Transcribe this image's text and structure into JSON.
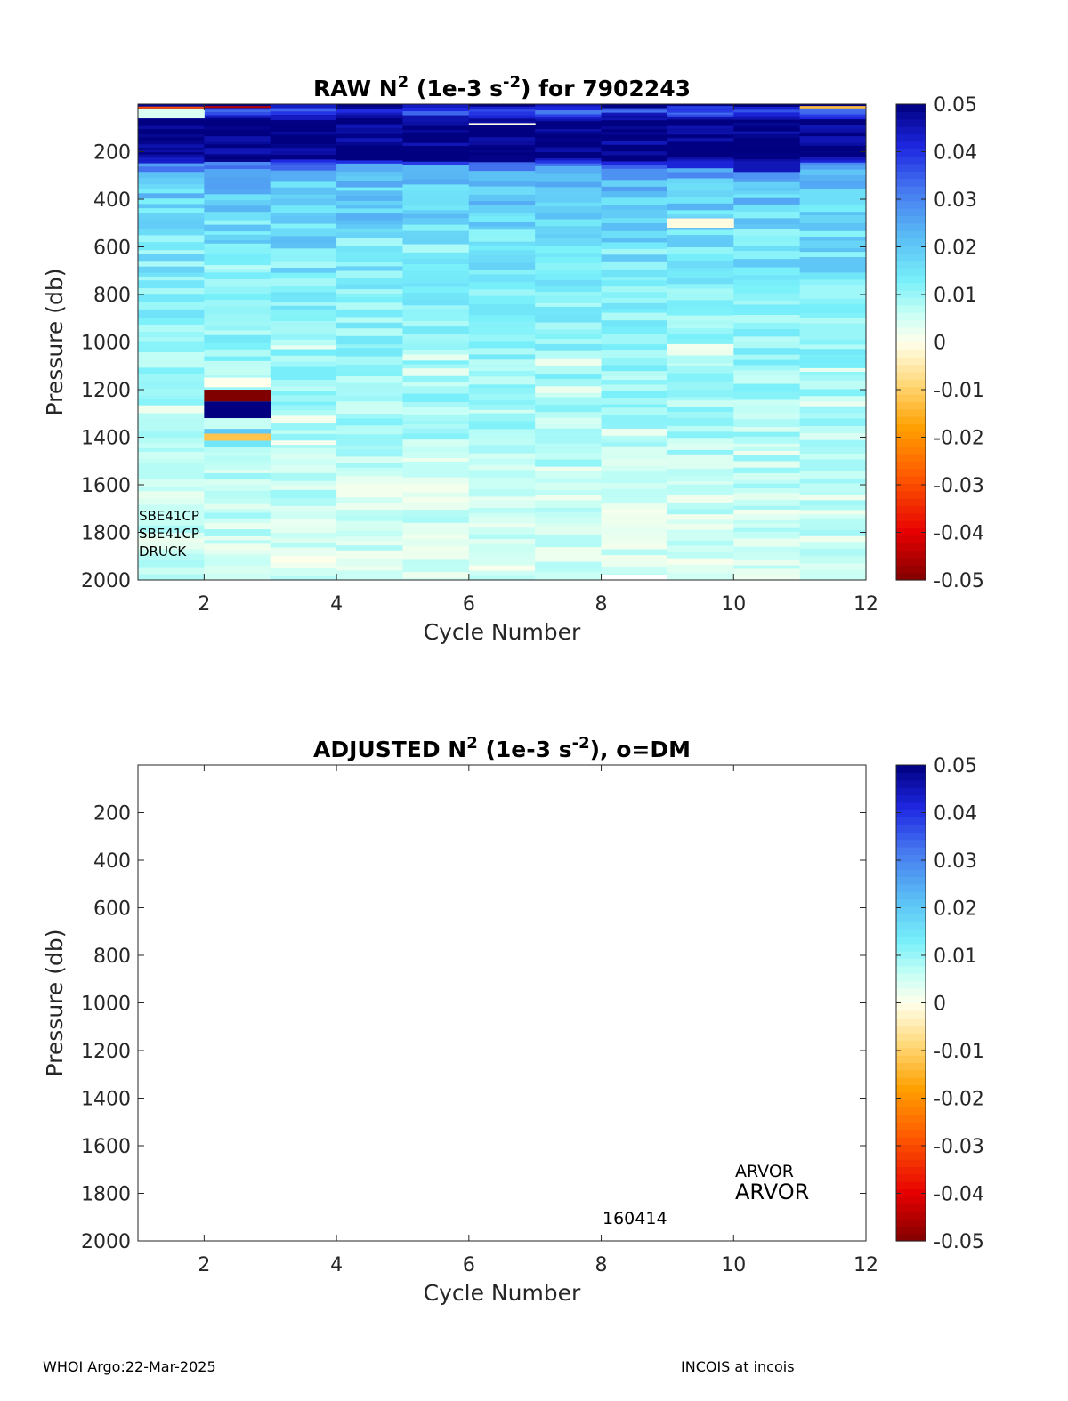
{
  "chart_data": [
    {
      "type": "heatmap",
      "title_main": "RAW N",
      "title_sup1": "2",
      "title_mid": " (1e-3 s",
      "title_sup2": "-2",
      "title_end": ") for 7902243",
      "xlabel": "Cycle Number",
      "ylabel": "Pressure (db)",
      "xlim": [
        1,
        12
      ],
      "ylim": [
        0,
        2000
      ],
      "x_ticks": [
        2,
        4,
        6,
        8,
        10,
        12
      ],
      "x_tick_labels": [
        "2",
        "4",
        "6",
        "8",
        "10",
        "12"
      ],
      "y_ticks": [
        200,
        400,
        600,
        800,
        1000,
        1200,
        1400,
        1600,
        1800,
        2000
      ],
      "y_tick_labels": [
        "200",
        "400",
        "600",
        "800",
        "1000",
        "1200",
        "1400",
        "1600",
        "1800",
        "2000"
      ],
      "colorbar": {
        "min": -0.05,
        "max": 0.05,
        "ticks": [
          0.05,
          0.04,
          0.03,
          0.02,
          0.01,
          0,
          -0.01,
          -0.02,
          -0.03,
          -0.04,
          -0.05
        ],
        "tick_labels": [
          "0.05",
          "0.04",
          "0.03",
          "0.02",
          "0.01",
          "0",
          "-0.01",
          "-0.02",
          "-0.03",
          "-0.04",
          "-0.05"
        ]
      },
      "cycles": [
        1,
        2,
        3,
        4,
        5,
        6,
        7,
        8,
        9,
        10,
        11
      ],
      "profile_max_pressure": [
        2000,
        2000,
        2000,
        2000,
        2000,
        2000,
        2000,
        1975,
        2000,
        2000,
        2000
      ],
      "base_profile": [
        {
          "p": 0,
          "v": 0.05
        },
        {
          "p": 30,
          "v": 0.035
        },
        {
          "p": 70,
          "v": 0.05
        },
        {
          "p": 230,
          "v": 0.05
        },
        {
          "p": 260,
          "v": 0.028
        },
        {
          "p": 320,
          "v": 0.02
        },
        {
          "p": 420,
          "v": 0.018
        },
        {
          "p": 600,
          "v": 0.014
        },
        {
          "p": 900,
          "v": 0.011
        },
        {
          "p": 1200,
          "v": 0.009
        },
        {
          "p": 1600,
          "v": 0.006
        },
        {
          "p": 2000,
          "v": 0.004
        }
      ],
      "anomalies": [
        {
          "cycle": 1,
          "p0": 10,
          "p1": 18,
          "v": -0.03
        },
        {
          "cycle": 2,
          "p0": 8,
          "p1": 16,
          "v": -0.045
        },
        {
          "cycle": 2,
          "p0": 1200,
          "p1": 1250,
          "v": -0.05
        },
        {
          "cycle": 2,
          "p0": 1250,
          "p1": 1320,
          "v": 0.05
        },
        {
          "cycle": 2,
          "p0": 1320,
          "p1": 1365,
          "v": 0.006
        },
        {
          "cycle": 2,
          "p0": 1365,
          "p1": 1385,
          "v": 0.02
        },
        {
          "cycle": 2,
          "p0": 1385,
          "p1": 1415,
          "v": -0.012
        },
        {
          "cycle": 2,
          "p0": 1415,
          "p1": 1440,
          "v": 0.015
        },
        {
          "cycle": 2,
          "p0": 1150,
          "p1": 1190,
          "v": 0.0
        },
        {
          "cycle": 6,
          "p0": 80,
          "p1": 88,
          "v": 0.0
        },
        {
          "cycle": 10,
          "p0": 240,
          "p1": 285,
          "v": 0.045
        },
        {
          "cycle": 9,
          "p0": 240,
          "p1": 270,
          "v": 0.042
        },
        {
          "cycle": 11,
          "p0": 8,
          "p1": 18,
          "v": -0.013
        },
        {
          "cycle": 9,
          "p0": 480,
          "p1": 520,
          "v": -0.001
        },
        {
          "cycle": 1,
          "p0": 20,
          "p1": 60,
          "v": 0.004
        }
      ],
      "annotations": [
        "SBE41CP",
        "SBE41CP",
        "DRUCK"
      ]
    },
    {
      "type": "heatmap",
      "title_main": "ADJUSTED N",
      "title_sup1": "2",
      "title_mid": " (1e-3 s",
      "title_sup2": "-2",
      "title_end": "), o=DM",
      "xlabel": "Cycle Number",
      "ylabel": "Pressure (db)",
      "xlim": [
        1,
        12
      ],
      "ylim": [
        0,
        2000
      ],
      "x_ticks": [
        2,
        4,
        6,
        8,
        10,
        12
      ],
      "x_tick_labels": [
        "2",
        "4",
        "6",
        "8",
        "10",
        "12"
      ],
      "y_ticks": [
        200,
        400,
        600,
        800,
        1000,
        1200,
        1400,
        1600,
        1800,
        2000
      ],
      "y_tick_labels": [
        "200",
        "400",
        "600",
        "800",
        "1000",
        "1200",
        "1400",
        "1600",
        "1800",
        "2000"
      ],
      "colorbar": {
        "min": -0.05,
        "max": 0.05,
        "ticks": [
          0.05,
          0.04,
          0.03,
          0.02,
          0.01,
          0,
          -0.01,
          -0.02,
          -0.03,
          -0.04,
          -0.05
        ],
        "tick_labels": [
          "0.05",
          "0.04",
          "0.03",
          "0.02",
          "0.01",
          "0",
          "-0.01",
          "-0.02",
          "-0.03",
          "-0.04",
          "-0.05"
        ]
      },
      "values": [],
      "annotations": {
        "small": "ARVOR",
        "large": "ARVOR",
        "serial": "160414"
      }
    }
  ],
  "footer": {
    "left": "WHOI Argo:22-Mar-2025",
    "right": "INCOIS at incois"
  }
}
